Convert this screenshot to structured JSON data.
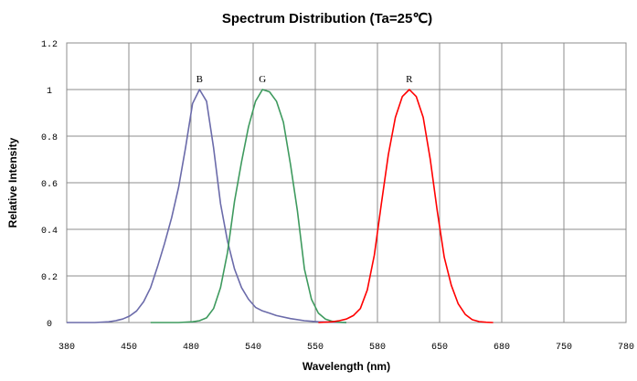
{
  "chart_data": {
    "type": "line",
    "title": "Spectrum Distribution  (Ta=25℃)",
    "xlabel": "Wavelength (nm)",
    "ylabel": "Relative Intensity",
    "xlim": [
      380,
      780
    ],
    "ylim": [
      0,
      1.2
    ],
    "x_ticks": [
      380,
      450,
      480,
      540,
      550,
      580,
      650,
      680,
      750,
      780
    ],
    "x_tick_labels": [
      "380",
      "450",
      "480",
      "540",
      "550",
      "580",
      "650",
      "680",
      "750",
      "780"
    ],
    "y_ticks": [
      0,
      0.2,
      0.4,
      0.6,
      0.8,
      1,
      1.2
    ],
    "y_tick_labels": [
      "0",
      "0.2",
      "0.4",
      "0.6",
      "0.8",
      "1",
      "1.2"
    ],
    "grid": true,
    "series": [
      {
        "name": "B",
        "color": "#6b6baa",
        "x": [
          380,
          400,
          410,
          415,
          420,
          425,
          430,
          435,
          440,
          445,
          450,
          455,
          460,
          465,
          470,
          475,
          480,
          485,
          490,
          495,
          500,
          505,
          510,
          515,
          520,
          525,
          530,
          540,
          550,
          560,
          570,
          580
        ],
        "y": [
          0,
          0,
          0.003,
          0.008,
          0.015,
          0.028,
          0.05,
          0.09,
          0.15,
          0.24,
          0.34,
          0.45,
          0.58,
          0.75,
          0.94,
          1.0,
          0.95,
          0.75,
          0.51,
          0.35,
          0.23,
          0.15,
          0.1,
          0.065,
          0.05,
          0.04,
          0.03,
          0.017,
          0.008,
          0.003,
          0.001,
          0
        ]
      },
      {
        "name": "G",
        "color": "#3e9a5e",
        "x": [
          440,
          460,
          470,
          475,
          480,
          485,
          490,
          495,
          500,
          505,
          510,
          515,
          520,
          525,
          530,
          535,
          540,
          545,
          550,
          555,
          560,
          565,
          570,
          575,
          580
        ],
        "y": [
          0,
          0,
          0.003,
          0.008,
          0.02,
          0.06,
          0.15,
          0.3,
          0.52,
          0.69,
          0.84,
          0.95,
          1.0,
          0.99,
          0.95,
          0.86,
          0.68,
          0.48,
          0.23,
          0.1,
          0.04,
          0.015,
          0.005,
          0.001,
          0
        ]
      },
      {
        "name": "R",
        "color": "#ff0000",
        "x": [
          560,
          570,
          575,
          580,
          585,
          590,
          595,
          600,
          605,
          610,
          615,
          620,
          625,
          630,
          635,
          640,
          645,
          650,
          655,
          660,
          665,
          670,
          675,
          680,
          685
        ],
        "y": [
          0,
          0.003,
          0.008,
          0.015,
          0.03,
          0.06,
          0.14,
          0.29,
          0.51,
          0.72,
          0.88,
          0.97,
          1.0,
          0.97,
          0.88,
          0.7,
          0.48,
          0.28,
          0.16,
          0.08,
          0.035,
          0.012,
          0.004,
          0.001,
          0
        ]
      }
    ]
  }
}
